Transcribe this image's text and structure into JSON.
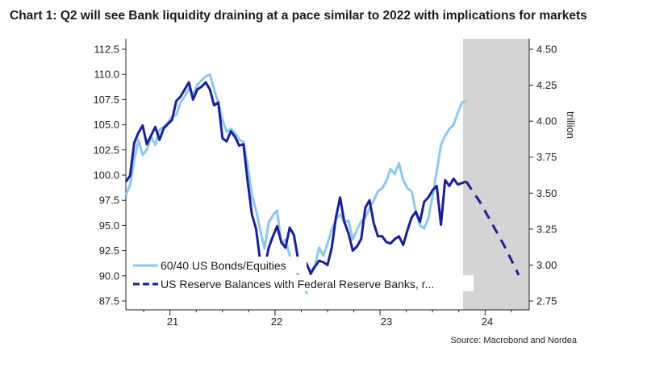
{
  "title": "Chart 1: Q2 will see Bank liquidity draining at a pace similar to 2022 with implications for markets",
  "source": "Source: Macrobond and Nordea",
  "colors": {
    "light_series": "#8ec7ef",
    "dark_series": "#1a1f96",
    "forecast_shade": "#d4d4d4"
  },
  "chart_data": {
    "type": "line",
    "title": "Chart 1: Q2 will see Bank liquidity draining at a pace similar to 2022 with implications for markets",
    "x_tick_labels": [
      "21",
      "22",
      "23",
      "24"
    ],
    "y_left": {
      "ticks": [
        "112.5",
        "110.0",
        "107.5",
        "105.0",
        "102.5",
        "100.0",
        "97.5",
        "95.0",
        "92.5",
        "90.0",
        "87.5"
      ],
      "ylim": [
        87.5,
        112.5
      ]
    },
    "y_right": {
      "label": "trillion",
      "ticks": [
        "4.50",
        "4.25",
        "4.00",
        "3.75",
        "3.50",
        "3.25",
        "3.00",
        "2.75"
      ],
      "ylim": [
        2.75,
        4.5
      ]
    },
    "xlim": [
      2020.58,
      2024.42
    ],
    "shaded_forecast_region": [
      2023.79,
      2024.42
    ],
    "legend_placement": "bottom-left",
    "series": [
      {
        "name": "60/40 US Bonds/Equities",
        "axis": "left",
        "style": "solid",
        "x": [
          2020.58,
          2020.62,
          2020.66,
          2020.7,
          2020.74,
          2020.78,
          2020.82,
          2020.86,
          2020.9,
          2020.94,
          2020.98,
          2021.02,
          2021.06,
          2021.1,
          2021.14,
          2021.18,
          2021.22,
          2021.26,
          2021.3,
          2021.34,
          2021.38,
          2021.42,
          2021.46,
          2021.5,
          2021.54,
          2021.58,
          2021.62,
          2021.66,
          2021.7,
          2021.74,
          2021.78,
          2021.82,
          2021.86,
          2021.9,
          2021.94,
          2021.98,
          2022.02,
          2022.06,
          2022.1,
          2022.14,
          2022.18,
          2022.22,
          2022.26,
          2022.3,
          2022.34,
          2022.38,
          2022.42,
          2022.46,
          2022.5,
          2022.54,
          2022.58,
          2022.62,
          2022.66,
          2022.7,
          2022.74,
          2022.78,
          2022.82,
          2022.86,
          2022.9,
          2022.94,
          2022.98,
          2023.02,
          2023.06,
          2023.1,
          2023.14,
          2023.18,
          2023.22,
          2023.26,
          2023.3,
          2023.34,
          2023.38,
          2023.42,
          2023.46,
          2023.5,
          2023.54,
          2023.58,
          2023.62,
          2023.66,
          2023.7,
          2023.74,
          2023.78,
          2023.82
        ],
        "values": [
          98.0,
          99.0,
          101.5,
          103.5,
          102.0,
          102.5,
          103.8,
          103.0,
          104.5,
          104.8,
          105.2,
          105.8,
          106.0,
          107.2,
          107.8,
          108.6,
          108.0,
          109.0,
          109.4,
          109.8,
          110.0,
          108.5,
          107.2,
          105.5,
          104.3,
          104.6,
          104.2,
          103.5,
          103.3,
          101.0,
          98.0,
          96.5,
          94.5,
          92.7,
          95.3,
          96.0,
          96.5,
          93.2,
          93.6,
          92.0,
          91.2,
          90.1,
          89.3,
          88.3,
          90.5,
          91.0,
          92.8,
          92.0,
          93.2,
          94.6,
          95.6,
          96.1,
          95.3,
          95.5,
          93.6,
          94.6,
          95.4,
          95.8,
          96.7,
          97.5,
          98.4,
          98.7,
          99.4,
          100.6,
          100.1,
          101.2,
          99.5,
          98.7,
          98.4,
          96.4,
          95.0,
          94.7,
          95.7,
          97.9,
          100.4,
          103.0,
          103.9,
          104.6,
          105.0,
          106.2,
          107.2,
          107.4
        ]
      },
      {
        "name": "US Reserve Balances with Federal Reserve Banks, r...",
        "axis": "right",
        "style": "solid",
        "x": [
          2020.58,
          2020.62,
          2020.66,
          2020.7,
          2020.74,
          2020.78,
          2020.82,
          2020.86,
          2020.9,
          2020.94,
          2020.98,
          2021.02,
          2021.06,
          2021.1,
          2021.14,
          2021.18,
          2021.22,
          2021.26,
          2021.3,
          2021.34,
          2021.38,
          2021.42,
          2021.46,
          2021.5,
          2021.54,
          2021.58,
          2021.62,
          2021.66,
          2021.7,
          2021.74,
          2021.78,
          2021.82,
          2021.86,
          2021.9,
          2021.94,
          2021.98,
          2022.02,
          2022.06,
          2022.1,
          2022.14,
          2022.18,
          2022.22,
          2022.26,
          2022.3,
          2022.34,
          2022.38,
          2022.42,
          2022.46,
          2022.5,
          2022.54,
          2022.58,
          2022.62,
          2022.66,
          2022.7,
          2022.74,
          2022.78,
          2022.82,
          2022.86,
          2022.9,
          2022.94,
          2022.98,
          2023.02,
          2023.06,
          2023.1,
          2023.14,
          2023.18,
          2023.22,
          2023.26,
          2023.3,
          2023.34,
          2023.38,
          2023.42,
          2023.46,
          2023.5,
          2023.54,
          2023.58,
          2023.62,
          2023.66,
          2023.7,
          2023.74,
          2023.78,
          2023.82
        ],
        "values": [
          3.58,
          3.62,
          3.85,
          3.92,
          3.97,
          3.84,
          3.9,
          3.96,
          3.87,
          3.95,
          3.98,
          4.01,
          4.14,
          4.17,
          4.22,
          4.27,
          4.15,
          4.22,
          4.24,
          4.27,
          4.22,
          4.11,
          4.13,
          3.88,
          3.86,
          3.93,
          3.89,
          3.83,
          3.84,
          3.58,
          3.35,
          3.25,
          3.02,
          2.98,
          3.12,
          3.2,
          3.27,
          3.16,
          3.12,
          3.26,
          3.21,
          3.04,
          3.04,
          3.01,
          2.94,
          2.99,
          3.03,
          3.02,
          3.0,
          3.12,
          3.33,
          3.47,
          3.3,
          3.22,
          3.1,
          3.13,
          3.18,
          3.4,
          3.45,
          3.29,
          3.2,
          3.2,
          3.16,
          3.15,
          3.18,
          3.2,
          3.14,
          3.24,
          3.33,
          3.37,
          3.3,
          3.44,
          3.47,
          3.52,
          3.55,
          3.28,
          3.59,
          3.55,
          3.6,
          3.56,
          3.57,
          3.58
        ]
      },
      {
        "name": "US Reserve Balances with Federal Reserve Banks, r...",
        "axis": "right",
        "style": "dashed",
        "x": [
          2023.82,
          2023.95,
          2024.08,
          2024.2,
          2024.32
        ],
        "values": [
          3.58,
          3.44,
          3.27,
          3.11,
          2.93
        ]
      }
    ]
  }
}
